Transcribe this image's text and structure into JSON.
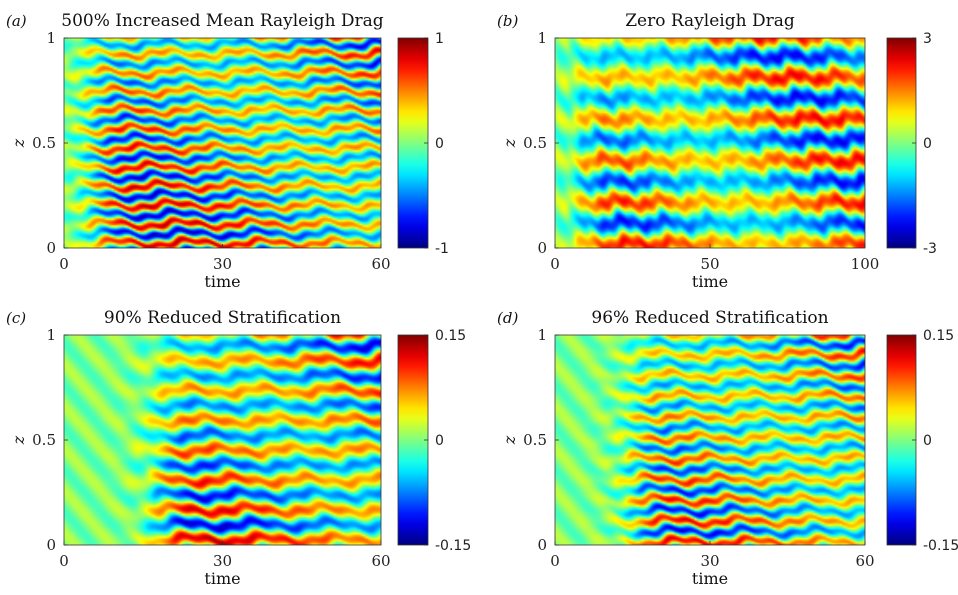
{
  "chart_data": [
    {
      "type": "heatmap",
      "panel_label": "(a)",
      "title": "500% Increased Mean Rayleigh Drag",
      "xlabel": "time",
      "ylabel": "z",
      "xlim": [
        0,
        60
      ],
      "ylim": [
        0,
        1
      ],
      "xticks": [
        0,
        30,
        60
      ],
      "yticks": [
        0,
        0.5,
        1
      ],
      "colorbar": {
        "min": -1,
        "max": 1,
        "ticks": [
          "1",
          "0",
          "-1"
        ]
      },
      "colormap": "jet",
      "pattern": {
        "bands": 11,
        "onset": 5,
        "amplitude": 0.85,
        "phase": 0.2
      }
    },
    {
      "type": "heatmap",
      "panel_label": "(b)",
      "title": "Zero Rayleigh Drag",
      "xlabel": "time",
      "ylabel": "z",
      "xlim": [
        0,
        100
      ],
      "ylim": [
        0,
        1
      ],
      "xticks": [
        0,
        50,
        100
      ],
      "yticks": [
        0,
        0.5,
        1
      ],
      "colorbar": {
        "min": -3,
        "max": 3,
        "ticks": [
          "3",
          "0",
          "-3"
        ]
      },
      "colormap": "jet",
      "pattern": {
        "bands": 5,
        "onset": 8,
        "amplitude": 0.75,
        "phase": 1.1
      }
    },
    {
      "type": "heatmap",
      "panel_label": "(c)",
      "title": "90% Reduced Stratification",
      "xlabel": "time",
      "ylabel": "z",
      "xlim": [
        0,
        60
      ],
      "ylim": [
        0,
        1
      ],
      "xticks": [
        0,
        30,
        60
      ],
      "yticks": [
        0,
        0.5,
        1
      ],
      "colorbar": {
        "min": -0.15,
        "max": 0.15,
        "ticks": [
          "0.15",
          "0",
          "-0.15"
        ]
      },
      "colormap": "jet",
      "pattern": {
        "bands": 7,
        "onset": 18,
        "amplitude": 0.9,
        "phase": 0.6
      }
    },
    {
      "type": "heatmap",
      "panel_label": "(d)",
      "title": "96% Reduced Stratification",
      "xlabel": "time",
      "ylabel": "z",
      "xlim": [
        0,
        60
      ],
      "ylim": [
        0,
        1
      ],
      "xticks": [
        0,
        30,
        60
      ],
      "yticks": [
        0,
        0.5,
        1
      ],
      "colorbar": {
        "min": -0.15,
        "max": 0.15,
        "ticks": [
          "0.15",
          "0",
          "-0.15"
        ]
      },
      "colormap": "jet",
      "pattern": {
        "bands": 10,
        "onset": 15,
        "amplitude": 0.8,
        "phase": 0.9
      }
    }
  ]
}
